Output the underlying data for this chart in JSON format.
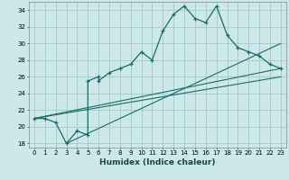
{
  "title": "",
  "xlabel": "Humidex (Indice chaleur)",
  "bg_color": "#cce8e8",
  "grid_color": "#aacccc",
  "line_color": "#1a6b6b",
  "xlim": [
    -0.5,
    23.5
  ],
  "ylim": [
    17.5,
    35.0
  ],
  "xticks": [
    0,
    1,
    2,
    3,
    4,
    5,
    6,
    7,
    8,
    9,
    10,
    11,
    12,
    13,
    14,
    15,
    16,
    17,
    18,
    19,
    20,
    21,
    22,
    23
  ],
  "yticks": [
    18,
    20,
    22,
    24,
    26,
    28,
    30,
    32,
    34
  ],
  "main_x": [
    0,
    1,
    2,
    3,
    4,
    5,
    5,
    6,
    6,
    7,
    8,
    9,
    10,
    11,
    12,
    13,
    14,
    15,
    16,
    17,
    18,
    19,
    20,
    21,
    22,
    23
  ],
  "main_y": [
    21,
    21,
    20.5,
    18,
    19.5,
    19,
    25.5,
    26,
    25.5,
    26.5,
    27,
    27.5,
    29,
    28,
    31.5,
    33.5,
    34.5,
    33,
    32.5,
    34.5,
    31,
    29.5,
    29,
    28.5,
    27.5,
    27
  ],
  "line1_x": [
    0,
    23
  ],
  "line1_y": [
    21,
    27
  ],
  "line2_x": [
    0,
    23
  ],
  "line2_y": [
    21,
    26
  ],
  "line3_x": [
    3,
    23
  ],
  "line3_y": [
    18,
    30
  ]
}
